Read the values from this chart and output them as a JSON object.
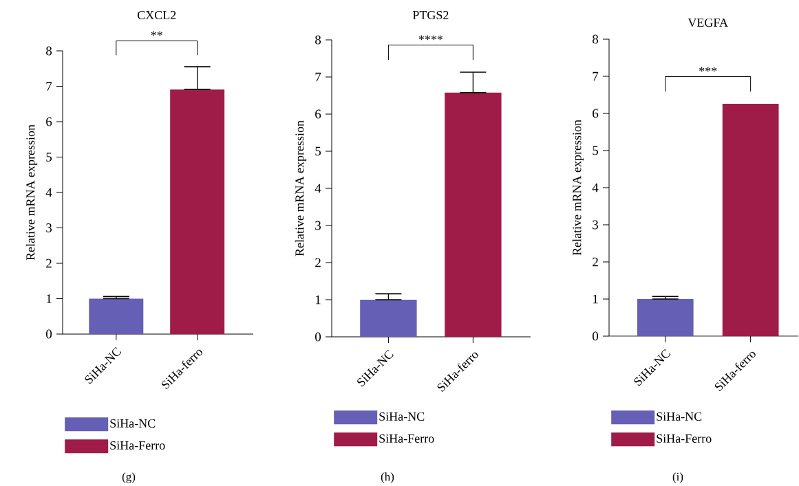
{
  "chart_data": [
    {
      "type": "bar",
      "title": "CXCL2",
      "ylabel": "Relative mRNA expression",
      "categories": [
        "SiHa-NC",
        "SiHa-ferro"
      ],
      "series": [
        {
          "name": "SiHa-NC",
          "color": "#655fb6",
          "values": [
            1.0,
            null
          ],
          "errors": [
            [
              1.0,
              1.06
            ],
            null
          ]
        },
        {
          "name": "SiHa-Ferro",
          "color": "#a01c48",
          "values": [
            null,
            6.91
          ],
          "errors": [
            null,
            [
              6.91,
              7.55
            ]
          ]
        }
      ],
      "ylim": [
        0,
        8
      ],
      "yticks": [
        0,
        1,
        2,
        3,
        4,
        5,
        6,
        7,
        8
      ],
      "legend": "bottom",
      "annotations": [
        "**",
        "(g)"
      ]
    },
    {
      "type": "bar",
      "title": "PTGS2",
      "ylabel": "Relative mRNA expression",
      "categories": [
        "SiHa-NC",
        "SiHa-ferro"
      ],
      "series": [
        {
          "name": "SiHa-NC",
          "color": "#655fb6",
          "values": [
            1.0,
            null
          ],
          "errors": [
            [
              1.0,
              1.16
            ],
            null
          ]
        },
        {
          "name": "SiHa-Ferro",
          "color": "#a01c48",
          "values": [
            null,
            6.58
          ],
          "errors": [
            null,
            [
              6.58,
              7.13
            ]
          ]
        }
      ],
      "ylim": [
        0,
        8
      ],
      "yticks": [
        0,
        1,
        2,
        3,
        4,
        5,
        6,
        7,
        8
      ],
      "legend": "bottom",
      "annotations": [
        "****",
        "(h)"
      ]
    },
    {
      "type": "bar",
      "title": "VEGFA",
      "ylabel": "Relative mRNA expression",
      "categories": [
        "SiHa-NC",
        "SiHa-ferro"
      ],
      "series": [
        {
          "name": "SiHa-NC",
          "color": "#655fb6",
          "values": [
            1.0,
            null
          ],
          "errors": [
            [
              1.0,
              1.07
            ],
            null
          ]
        },
        {
          "name": "SiHa-Ferro",
          "color": "#a01c48",
          "values": [
            null,
            6.26
          ],
          "errors": [
            null,
            null
          ]
        }
      ],
      "ylim": [
        0,
        8
      ],
      "yticks": [
        0,
        1,
        2,
        3,
        4,
        5,
        6,
        7,
        8
      ],
      "legend": "bottom",
      "annotations": [
        "***",
        "(i)"
      ]
    }
  ]
}
